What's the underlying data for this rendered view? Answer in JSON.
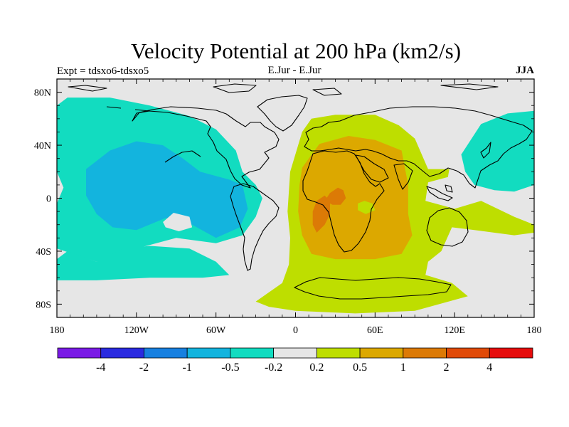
{
  "chart_data": {
    "type": "heatmap",
    "title": "Velocity Potential at 200 hPa (km2/s)",
    "left_label": "Expt = tdsxo6-tdsxo5",
    "center_label": "E.Jur - E.Jur",
    "right_label": "JJA",
    "xlim": [
      -180,
      180
    ],
    "ylim": [
      -90,
      90
    ],
    "x_ticks": [
      -180,
      -120,
      -60,
      0,
      60,
      120,
      180
    ],
    "x_tick_labels": [
      "180",
      "120W",
      "60W",
      "0",
      "60E",
      "120E",
      "180"
    ],
    "y_ticks": [
      80,
      40,
      0,
      -40,
      -80
    ],
    "y_tick_labels": [
      "80N",
      "40N",
      "0",
      "40S",
      "80S"
    ],
    "colorbar": {
      "colors": [
        "#7a1ae6",
        "#2a2ae0",
        "#1780e0",
        "#13b4de",
        "#12dcc0",
        "#e6e6e6",
        "#bede00",
        "#dca800",
        "#dc7a06",
        "#e04a08",
        "#e60c0c"
      ],
      "levels": [
        -4,
        -2,
        -1,
        -0.5,
        -0.2,
        0.2,
        0.5,
        1,
        2,
        4
      ],
      "labels": [
        "-4",
        "-2",
        "-1",
        "-0.5",
        "-0.2",
        "0.2",
        "0.5",
        "1",
        "2",
        "4"
      ]
    },
    "regions": [
      {
        "name": "north-pacific-negative",
        "value": -0.3,
        "color": "#12dcc0",
        "polygon": [
          [
            -180,
            70
          ],
          [
            -172,
            76
          ],
          [
            -140,
            76
          ],
          [
            -110,
            70
          ],
          [
            -80,
            62
          ],
          [
            -60,
            52
          ],
          [
            -45,
            36
          ],
          [
            -40,
            20
          ],
          [
            -30,
            10
          ],
          [
            -25,
            0
          ],
          [
            -30,
            -14
          ],
          [
            -40,
            -28
          ],
          [
            -60,
            -34
          ],
          [
            -90,
            -30
          ],
          [
            -120,
            -38
          ],
          [
            -150,
            -48
          ],
          [
            -180,
            -38
          ],
          [
            -180,
            -4
          ],
          [
            -175,
            8
          ],
          [
            -180,
            20
          ]
        ]
      },
      {
        "name": "southeast-pacific-negative",
        "value": -0.3,
        "color": "#12dcc0",
        "polygon": [
          [
            -180,
            -46
          ],
          [
            -172,
            -40
          ],
          [
            -150,
            -48
          ],
          [
            -130,
            -38
          ],
          [
            -110,
            -36
          ],
          [
            -80,
            -38
          ],
          [
            -60,
            -48
          ],
          [
            -50,
            -58
          ],
          [
            -70,
            -60
          ],
          [
            -110,
            -60
          ],
          [
            -150,
            -62
          ],
          [
            -180,
            -62
          ]
        ]
      },
      {
        "name": "north-pacific-core",
        "value": -0.7,
        "color": "#13b4de",
        "polygon": [
          [
            -158,
            22
          ],
          [
            -140,
            36
          ],
          [
            -120,
            43
          ],
          [
            -100,
            40
          ],
          [
            -85,
            30
          ],
          [
            -72,
            20
          ],
          [
            -50,
            14
          ],
          [
            -40,
            10
          ],
          [
            -36,
            -8
          ],
          [
            -42,
            -22
          ],
          [
            -60,
            -30
          ],
          [
            -78,
            -20
          ],
          [
            -98,
            -15
          ],
          [
            -120,
            -24
          ],
          [
            -138,
            -22
          ],
          [
            -150,
            -12
          ],
          [
            -158,
            2
          ]
        ]
      },
      {
        "name": "west-pacific-negative",
        "value": -0.3,
        "color": "#12dcc0",
        "polygon": [
          [
            125,
            33
          ],
          [
            140,
            56
          ],
          [
            160,
            64
          ],
          [
            180,
            66
          ],
          [
            180,
            10
          ],
          [
            165,
            5
          ],
          [
            150,
            6
          ],
          [
            135,
            10
          ],
          [
            128,
            20
          ]
        ]
      },
      {
        "name": "eastern-hemisphere-positive",
        "value": 0.35,
        "color": "#bede00",
        "polygon": [
          [
            5,
            50
          ],
          [
            12,
            60
          ],
          [
            30,
            63
          ],
          [
            60,
            63
          ],
          [
            78,
            55
          ],
          [
            90,
            45
          ],
          [
            100,
            22
          ],
          [
            116,
            22
          ],
          [
            115,
            16
          ],
          [
            100,
            12
          ],
          [
            98,
            -2
          ],
          [
            120,
            -8
          ],
          [
            140,
            -2
          ],
          [
            165,
            -14
          ],
          [
            180,
            -20
          ],
          [
            180,
            -26
          ],
          [
            165,
            -28
          ],
          [
            135,
            -24
          ],
          [
            118,
            -22
          ],
          [
            110,
            -40
          ],
          [
            100,
            -48
          ],
          [
            98,
            -58
          ],
          [
            118,
            -64
          ],
          [
            130,
            -74
          ],
          [
            90,
            -85
          ],
          [
            45,
            -87
          ],
          [
            0,
            -85
          ],
          [
            -20,
            -82
          ],
          [
            -30,
            -78
          ],
          [
            -10,
            -64
          ],
          [
            -5,
            -50
          ],
          [
            -4,
            -30
          ],
          [
            -6,
            -10
          ],
          [
            -4,
            20
          ]
        ]
      },
      {
        "name": "positive-core",
        "value": 0.7,
        "color": "#dca800",
        "polygon": [
          [
            5,
            23
          ],
          [
            18,
            41
          ],
          [
            40,
            47
          ],
          [
            60,
            44
          ],
          [
            80,
            36
          ],
          [
            85,
            10
          ],
          [
            85,
            -12
          ],
          [
            88,
            -28
          ],
          [
            80,
            -42
          ],
          [
            60,
            -46
          ],
          [
            30,
            -46
          ],
          [
            12,
            -42
          ],
          [
            5,
            -28
          ],
          [
            2,
            -10
          ],
          [
            3,
            10
          ]
        ]
      },
      {
        "name": "positive-max-east",
        "value": 1.3,
        "color": "#dc7a06",
        "polygon": [
          [
            22,
            -2
          ],
          [
            26,
            4
          ],
          [
            32,
            8
          ],
          [
            36,
            6
          ],
          [
            38,
            0
          ],
          [
            34,
            -5
          ],
          [
            28,
            -5
          ]
        ]
      },
      {
        "name": "positive-max-west",
        "value": 1.3,
        "color": "#dc7a06",
        "polygon": [
          [
            13,
            -10
          ],
          [
            16,
            -2
          ],
          [
            22,
            2
          ],
          [
            26,
            -2
          ],
          [
            26,
            -12
          ],
          [
            22,
            -20
          ],
          [
            16,
            -26
          ],
          [
            13,
            -20
          ]
        ]
      }
    ],
    "holes": [
      {
        "name": "mid-pacific-gap",
        "color": "#e6e6e6",
        "polygon": [
          [
            -100,
            -18
          ],
          [
            -92,
            -11
          ],
          [
            -80,
            -14
          ],
          [
            -78,
            -22
          ],
          [
            -88,
            -25
          ],
          [
            -98,
            -22
          ]
        ]
      },
      {
        "name": "atlantic-central-dip",
        "color": "#bede00",
        "polygon": [
          [
            47,
            -4
          ],
          [
            52,
            -2
          ],
          [
            58,
            -4
          ],
          [
            60,
            -9
          ],
          [
            53,
            -12
          ],
          [
            47,
            -9
          ]
        ]
      }
    ]
  }
}
